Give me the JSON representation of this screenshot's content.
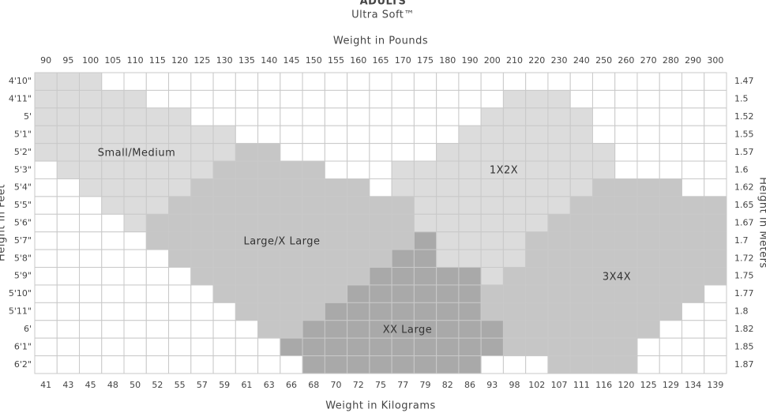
{
  "chart_data": {
    "type": "heatmap",
    "title": "ADULTS",
    "subtitle": "Ultra Soft™",
    "x_label": "Weight in Pounds",
    "x2_label": "Weight in Kilograms",
    "y_label": "Height in Feet",
    "y2_label": "Height in Meters",
    "categories": [
      90,
      95,
      100,
      105,
      110,
      115,
      120,
      125,
      130,
      135,
      140,
      145,
      150,
      155,
      160,
      165,
      170,
      175,
      180,
      190,
      200,
      210,
      220,
      230,
      240,
      250,
      260,
      270,
      280,
      290,
      300
    ],
    "categories2": [
      41,
      43,
      45,
      48,
      50,
      52,
      55,
      57,
      59,
      61,
      63,
      66,
      68,
      70,
      72,
      75,
      77,
      79,
      82,
      86,
      93,
      98,
      102,
      107,
      111,
      116,
      120,
      125,
      129,
      134,
      139
    ],
    "rows": [
      "4'10\"",
      "4'11\"",
      "5'",
      "5'1\"",
      "5'2\"",
      "5'3\"",
      "5'4\"",
      "5'5\"",
      "5'6\"",
      "5'7\"",
      "5'8\"",
      "5'9\"",
      "5'10\"",
      "5'11\"",
      "6'",
      "6'1\"",
      "6'2\""
    ],
    "rows2": [
      1.47,
      1.5,
      1.52,
      1.55,
      1.57,
      1.6,
      1.62,
      1.65,
      1.67,
      1.7,
      1.72,
      1.75,
      1.77,
      1.8,
      1.82,
      1.85,
      1.87
    ],
    "sizes": [
      {
        "name": "Small/Medium",
        "color": "#dcdcdc"
      },
      {
        "name": "Large/X Large",
        "color": "#c6c6c6"
      },
      {
        "name": "XX Large",
        "color": "#a9a9a9"
      },
      {
        "name": "1X2X",
        "color": "#dcdcdc"
      },
      {
        "name": "3X4X",
        "color": "#c6c6c6"
      }
    ],
    "cells": [
      [
        0,
        0,
        0,
        null,
        null,
        null,
        null,
        null,
        null,
        null,
        null,
        null,
        null,
        null,
        null,
        null,
        null,
        null,
        null,
        null,
        null,
        null,
        null,
        null,
        null,
        null,
        null,
        null,
        null,
        null,
        null
      ],
      [
        0,
        0,
        0,
        0,
        0,
        null,
        null,
        null,
        null,
        null,
        null,
        null,
        null,
        null,
        null,
        null,
        null,
        null,
        null,
        null,
        null,
        3,
        3,
        3,
        null,
        null,
        null,
        null,
        null,
        null,
        null
      ],
      [
        0,
        0,
        0,
        0,
        0,
        0,
        0,
        null,
        null,
        null,
        null,
        null,
        null,
        null,
        null,
        null,
        null,
        null,
        null,
        null,
        3,
        3,
        3,
        3,
        3,
        null,
        null,
        null,
        null,
        null,
        null
      ],
      [
        0,
        0,
        0,
        0,
        0,
        0,
        0,
        0,
        0,
        null,
        null,
        null,
        null,
        null,
        null,
        null,
        null,
        null,
        null,
        3,
        3,
        3,
        3,
        3,
        3,
        null,
        null,
        null,
        null,
        null,
        null
      ],
      [
        0,
        0,
        0,
        0,
        0,
        0,
        0,
        0,
        0,
        1,
        1,
        null,
        null,
        null,
        null,
        null,
        null,
        null,
        3,
        3,
        3,
        3,
        3,
        3,
        3,
        3,
        null,
        null,
        null,
        null,
        null
      ],
      [
        null,
        0,
        0,
        0,
        0,
        0,
        0,
        0,
        1,
        1,
        1,
        1,
        1,
        null,
        null,
        null,
        3,
        3,
        3,
        3,
        3,
        3,
        3,
        3,
        3,
        3,
        null,
        null,
        null,
        null,
        null
      ],
      [
        null,
        null,
        0,
        0,
        0,
        0,
        0,
        1,
        1,
        1,
        1,
        1,
        1,
        1,
        1,
        null,
        3,
        3,
        3,
        3,
        3,
        3,
        3,
        3,
        3,
        4,
        4,
        4,
        4,
        null,
        null
      ],
      [
        null,
        null,
        null,
        0,
        0,
        0,
        1,
        1,
        1,
        1,
        1,
        1,
        1,
        1,
        1,
        1,
        1,
        3,
        3,
        3,
        3,
        3,
        3,
        3,
        4,
        4,
        4,
        4,
        4,
        4,
        4
      ],
      [
        null,
        null,
        null,
        null,
        0,
        1,
        1,
        1,
        1,
        1,
        1,
        1,
        1,
        1,
        1,
        1,
        1,
        3,
        3,
        3,
        3,
        3,
        3,
        4,
        4,
        4,
        4,
        4,
        4,
        4,
        4
      ],
      [
        null,
        null,
        null,
        null,
        null,
        1,
        1,
        1,
        1,
        1,
        1,
        1,
        1,
        1,
        1,
        1,
        1,
        2,
        3,
        3,
        3,
        3,
        4,
        4,
        4,
        4,
        4,
        4,
        4,
        4,
        4
      ],
      [
        null,
        null,
        null,
        null,
        null,
        null,
        1,
        1,
        1,
        1,
        1,
        1,
        1,
        1,
        1,
        1,
        2,
        2,
        3,
        3,
        3,
        3,
        4,
        4,
        4,
        4,
        4,
        4,
        4,
        4,
        4
      ],
      [
        null,
        null,
        null,
        null,
        null,
        null,
        null,
        1,
        1,
        1,
        1,
        1,
        1,
        1,
        1,
        2,
        2,
        2,
        2,
        2,
        3,
        4,
        4,
        4,
        4,
        4,
        4,
        4,
        4,
        4,
        4
      ],
      [
        null,
        null,
        null,
        null,
        null,
        null,
        null,
        null,
        1,
        1,
        1,
        1,
        1,
        1,
        2,
        2,
        2,
        2,
        2,
        2,
        4,
        4,
        4,
        4,
        4,
        4,
        4,
        4,
        4,
        4,
        null
      ],
      [
        null,
        null,
        null,
        null,
        null,
        null,
        null,
        null,
        null,
        1,
        1,
        1,
        1,
        2,
        2,
        2,
        2,
        2,
        2,
        2,
        4,
        4,
        4,
        4,
        4,
        4,
        4,
        4,
        4,
        null,
        null
      ],
      [
        null,
        null,
        null,
        null,
        null,
        null,
        null,
        null,
        null,
        null,
        1,
        1,
        2,
        2,
        2,
        2,
        2,
        2,
        2,
        2,
        2,
        4,
        4,
        4,
        4,
        4,
        4,
        4,
        null,
        null,
        null
      ],
      [
        null,
        null,
        null,
        null,
        null,
        null,
        null,
        null,
        null,
        null,
        null,
        2,
        2,
        2,
        2,
        2,
        2,
        2,
        2,
        2,
        2,
        4,
        4,
        4,
        4,
        4,
        4,
        null,
        null,
        null,
        null
      ],
      [
        null,
        null,
        null,
        null,
        null,
        null,
        null,
        null,
        null,
        null,
        null,
        null,
        2,
        2,
        2,
        2,
        2,
        2,
        2,
        2,
        null,
        null,
        null,
        4,
        4,
        4,
        4,
        null,
        null,
        null,
        null
      ]
    ]
  }
}
